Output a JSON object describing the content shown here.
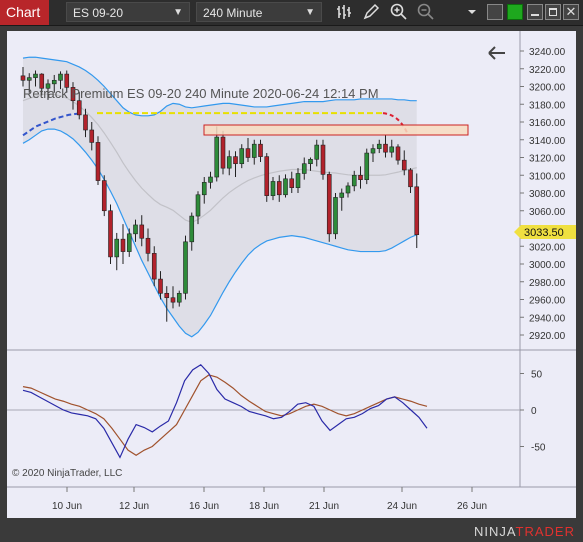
{
  "toolbar": {
    "tab_label": "Chart",
    "instrument": "ES 09-20",
    "interval": "240 Minute"
  },
  "chart": {
    "info_text": "Retrack Premium  ES 09-20  240 Minute  2020-06-24 12:14 PM",
    "current_price_label": "3033.50",
    "copyright": "© 2020 NinjaTrader, LLC",
    "brand_prefix": "NINJA",
    "brand_suffix": "TRADER",
    "colors": {
      "up_candle": "#2e8b3a",
      "down_candle": "#b2222c",
      "band": "#3399ee",
      "resistance_line": "#e8e000",
      "support_dash": "#3355cc",
      "zone_fill": "#f8dcc0",
      "zone_border": "#cc2222",
      "osc_blue": "#2a2aa8",
      "osc_brown": "#a0522d",
      "price_tag": "#f0e040"
    }
  },
  "chart_data": {
    "type": "candlestick",
    "price_axis": {
      "min": 2920,
      "max": 3240,
      "step": 20,
      "labels": [
        "3240.00",
        "3220.00",
        "3200.00",
        "3180.00",
        "3160.00",
        "3140.00",
        "3120.00",
        "3100.00",
        "3080.00",
        "3060.00",
        "3040.00",
        "3020.00",
        "3000.00",
        "2980.00",
        "2960.00",
        "2940.00",
        "2920.00"
      ]
    },
    "oscillator_axis": {
      "ticks": [
        50,
        0,
        -50
      ],
      "labels": [
        "50",
        "0",
        "-50"
      ]
    },
    "x_labels": [
      "10 Jun",
      "12 Jun",
      "16 Jun",
      "18 Jun",
      "21 Jun",
      "24 Jun",
      "26 Jun"
    ],
    "candles": [
      [
        3212,
        3222,
        3200,
        3207
      ],
      [
        3207,
        3215,
        3193,
        3210
      ],
      [
        3210,
        3218,
        3200,
        3214
      ],
      [
        3214,
        3215,
        3190,
        3198
      ],
      [
        3198,
        3208,
        3185,
        3203
      ],
      [
        3203,
        3213,
        3193,
        3207
      ],
      [
        3207,
        3217,
        3197,
        3214
      ],
      [
        3214,
        3218,
        3193,
        3199
      ],
      [
        3199,
        3205,
        3174,
        3184
      ],
      [
        3184,
        3194,
        3163,
        3168
      ],
      [
        3168,
        3175,
        3143,
        3151
      ],
      [
        3151,
        3160,
        3128,
        3137
      ],
      [
        3137,
        3144,
        3089,
        3094
      ],
      [
        3094,
        3100,
        3054,
        3060
      ],
      [
        3060,
        3067,
        3000,
        3008
      ],
      [
        3008,
        3035,
        2993,
        3028
      ],
      [
        3028,
        3045,
        3000,
        3014
      ],
      [
        3014,
        3040,
        3008,
        3034
      ],
      [
        3034,
        3050,
        3025,
        3044
      ],
      [
        3044,
        3055,
        3020,
        3029
      ],
      [
        3029,
        3040,
        3003,
        3012
      ],
      [
        3012,
        3020,
        2975,
        2983
      ],
      [
        2983,
        2992,
        2960,
        2967
      ],
      [
        2967,
        2975,
        2935,
        2962
      ],
      [
        2962,
        2975,
        2950,
        2957
      ],
      [
        2957,
        2970,
        2952,
        2967
      ],
      [
        2967,
        3032,
        2960,
        3025
      ],
      [
        3025,
        3058,
        3015,
        3054
      ],
      [
        3054,
        3082,
        3045,
        3078
      ],
      [
        3078,
        3098,
        3068,
        3092
      ],
      [
        3092,
        3104,
        3085,
        3098
      ],
      [
        3098,
        3155,
        3093,
        3143
      ],
      [
        3143,
        3150,
        3101,
        3108
      ],
      [
        3108,
        3128,
        3100,
        3121
      ],
      [
        3121,
        3127,
        3098,
        3113
      ],
      [
        3113,
        3135,
        3108,
        3130
      ],
      [
        3130,
        3142,
        3115,
        3120
      ],
      [
        3120,
        3140,
        3112,
        3135
      ],
      [
        3135,
        3140,
        3115,
        3121
      ],
      [
        3121,
        3125,
        3070,
        3077
      ],
      [
        3077,
        3098,
        3072,
        3093
      ],
      [
        3093,
        3100,
        3070,
        3078
      ],
      [
        3078,
        3101,
        3075,
        3096
      ],
      [
        3096,
        3104,
        3080,
        3086
      ],
      [
        3086,
        3108,
        3080,
        3102
      ],
      [
        3102,
        3120,
        3095,
        3113
      ],
      [
        3113,
        3120,
        3105,
        3118
      ],
      [
        3118,
        3140,
        3110,
        3134
      ],
      [
        3134,
        3140,
        3095,
        3101
      ],
      [
        3101,
        3104,
        3025,
        3034
      ],
      [
        3034,
        3080,
        3028,
        3075
      ],
      [
        3075,
        3085,
        3060,
        3080
      ],
      [
        3080,
        3092,
        3075,
        3088
      ],
      [
        3088,
        3105,
        3082,
        3100
      ],
      [
        3100,
        3110,
        3085,
        3095
      ],
      [
        3095,
        3130,
        3090,
        3125
      ],
      [
        3125,
        3135,
        3115,
        3130
      ],
      [
        3130,
        3140,
        3125,
        3135
      ],
      [
        3135,
        3145,
        3120,
        3126
      ],
      [
        3126,
        3140,
        3120,
        3132
      ],
      [
        3132,
        3135,
        3112,
        3117
      ],
      [
        3117,
        3128,
        3100,
        3106
      ],
      [
        3106,
        3108,
        3080,
        3087
      ],
      [
        3087,
        3102,
        3018,
        3033
      ]
    ],
    "upper_band": [
      3232,
      3233,
      3233,
      3232,
      3231,
      3230,
      3229,
      3228,
      3225,
      3222,
      3218,
      3213,
      3207,
      3200,
      3192,
      3184,
      3176,
      3171,
      3168,
      3167,
      3167,
      3168,
      3172,
      3178,
      3181,
      3180,
      3177,
      3176,
      3177,
      3178,
      3179,
      3180,
      3181,
      3181,
      3180,
      3179,
      3178,
      3177,
      3177,
      3177,
      3178,
      3179,
      3180,
      3181,
      3182,
      3183,
      3183,
      3183,
      3183,
      3184,
      3185,
      3185,
      3185,
      3185,
      3186,
      3186,
      3186,
      3186,
      3186,
      3186,
      3185,
      3185,
      3184,
      3184
    ],
    "lower_band": [
      3136,
      3140,
      3145,
      3150,
      3152,
      3152,
      3150,
      3146,
      3141,
      3134,
      3126,
      3117,
      3107,
      3095,
      3082,
      3068,
      3052,
      3036,
      3020,
      3004,
      2990,
      2976,
      2962,
      2950,
      2940,
      2930,
      2922,
      2918,
      2923,
      2932,
      2942,
      2955,
      2968,
      2980,
      2991,
      3001,
      3010,
      3017,
      3022,
      3026,
      3028,
      3030,
      3031,
      3032,
      3031,
      3030,
      3028,
      3026,
      3024,
      3022,
      3020,
      3018,
      3016,
      3015,
      3014,
      3014,
      3014,
      3014,
      3015,
      3018,
      3022,
      3026,
      3030,
      3033
    ]
  }
}
